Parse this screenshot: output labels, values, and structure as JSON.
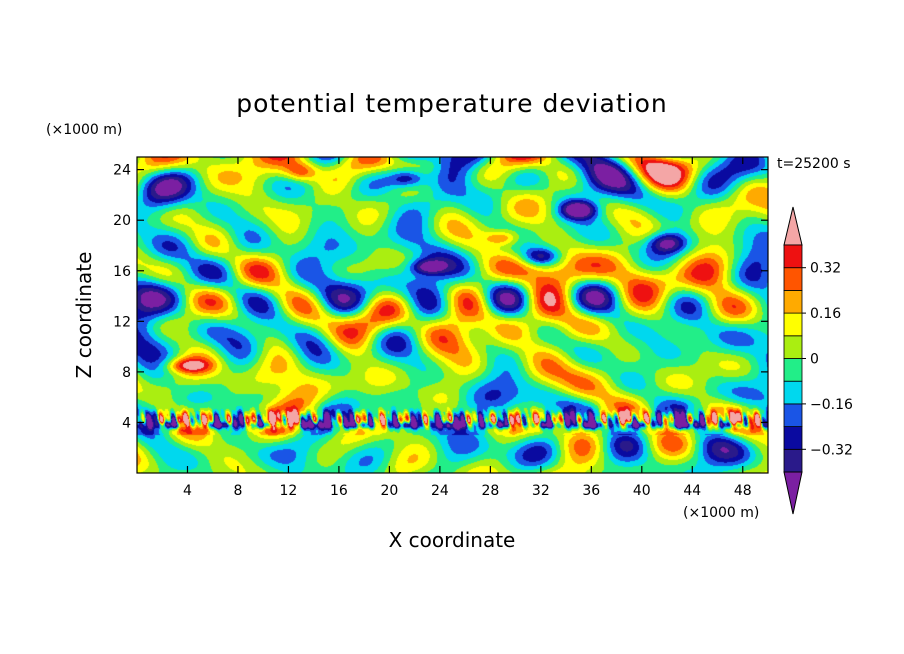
{
  "chart_data": {
    "type": "heatmap",
    "title": "potential temperature deviation",
    "xlabel": "X coordinate",
    "ylabel": "Z coordinate",
    "x_unit": "(×1000 m)",
    "z_unit": "(×1000 m)",
    "time_label": "t=25200 s",
    "xlim": [
      0,
      50
    ],
    "ylim": [
      0,
      25
    ],
    "x_ticks": [
      4,
      8,
      12,
      16,
      20,
      24,
      28,
      32,
      36,
      40,
      44,
      48
    ],
    "y_ticks": [
      4,
      8,
      12,
      16,
      20,
      24
    ],
    "levels": [
      -0.4,
      -0.32,
      -0.24,
      -0.16,
      -0.08,
      0,
      0.08,
      0.16,
      0.24,
      0.32,
      0.4
    ],
    "colorbar_labels": [
      {
        "value": 0.32,
        "text": "0.32"
      },
      {
        "value": 0.16,
        "text": "0.16"
      },
      {
        "value": 0,
        "text": "0"
      },
      {
        "value": -0.16,
        "text": "−0.16"
      },
      {
        "value": -0.32,
        "text": "−0.32"
      }
    ],
    "colors": {
      "below_min": "#7b1fa2",
      "bands": [
        "#2a1a8a",
        "#0a0aa0",
        "#1a55e6",
        "#00d8ee",
        "#22ee88",
        "#aaee11",
        "#ffff00",
        "#ffaa00",
        "#ff5500",
        "#ee1111"
      ],
      "above_max": "#f4a6a6"
    }
  }
}
